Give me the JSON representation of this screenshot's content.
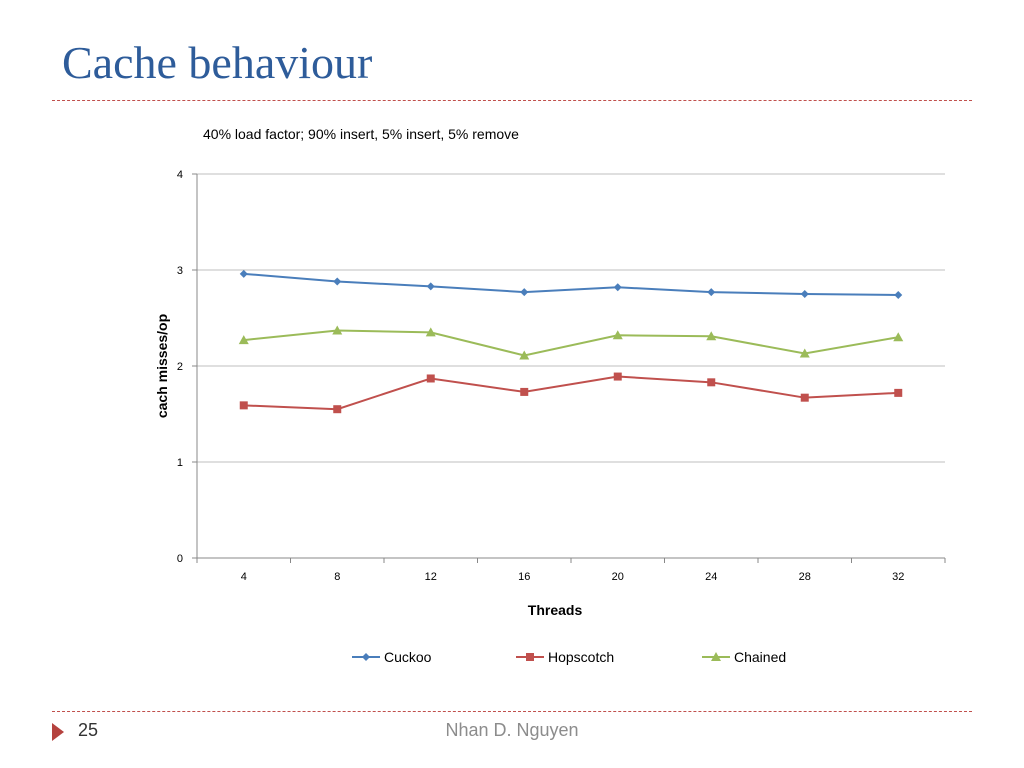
{
  "slide": {
    "title": "Cache behaviour",
    "page_number": "25",
    "author": "Nhan D. Nguyen"
  },
  "colors": {
    "title": "#2e5c9a",
    "rule": "#c0504d",
    "gridline": "#bfbfbf"
  },
  "chart_data": {
    "type": "line",
    "title": "40% load factor; 90% insert, 5% insert, 5% remove",
    "xlabel": "Threads",
    "ylabel": "cach misses/op",
    "categories": [
      "4",
      "8",
      "12",
      "16",
      "20",
      "24",
      "28",
      "32"
    ],
    "ylim": [
      0,
      4
    ],
    "yticks": [
      "0",
      "1",
      "2",
      "3",
      "4"
    ],
    "grid": true,
    "legend_position": "bottom",
    "series": [
      {
        "name": "Cuckoo",
        "color": "#4a7ebb",
        "marker": "diamond",
        "values": [
          2.96,
          2.88,
          2.83,
          2.77,
          2.82,
          2.77,
          2.75,
          2.74
        ]
      },
      {
        "name": "Hopscotch",
        "color": "#c0504d",
        "marker": "square",
        "values": [
          1.59,
          1.55,
          1.87,
          1.73,
          1.89,
          1.83,
          1.67,
          1.72
        ]
      },
      {
        "name": "Chained",
        "color": "#9bbb59",
        "marker": "triangle",
        "values": [
          2.27,
          2.37,
          2.35,
          2.11,
          2.32,
          2.31,
          2.13,
          2.3
        ]
      }
    ]
  }
}
